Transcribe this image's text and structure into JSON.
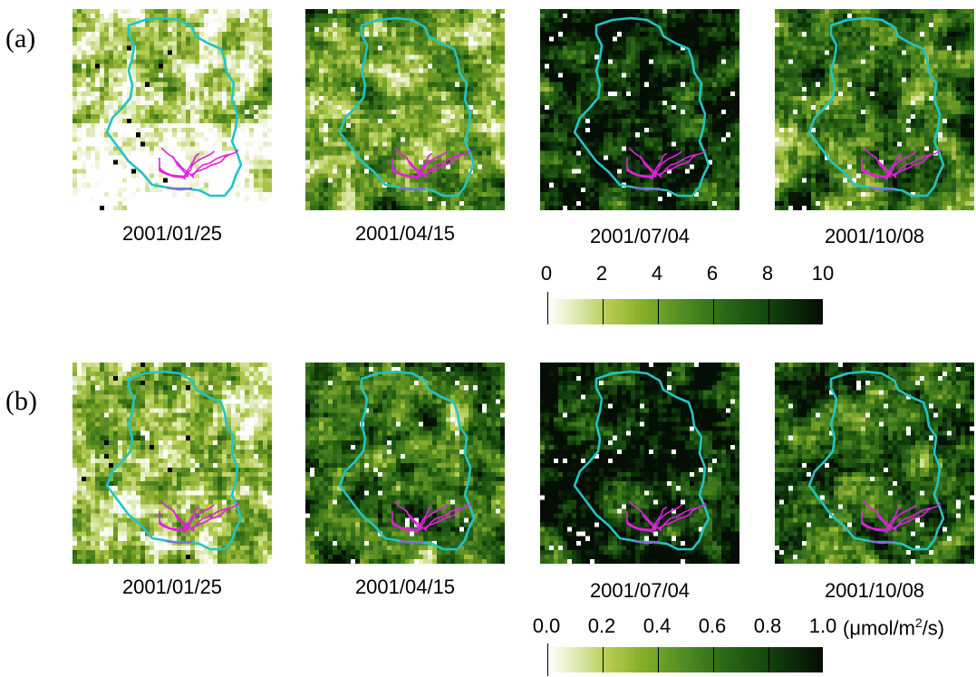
{
  "figure": {
    "panel_a_label": "(a)",
    "panel_b_label": "(b)",
    "row_a": {
      "dates": [
        "2001/01/25",
        "2001/04/15",
        "2001/07/04",
        "2001/10/08"
      ],
      "colorbar_ticks": [
        "0",
        "2",
        "4",
        "6",
        "8",
        "10"
      ]
    },
    "row_b": {
      "dates": [
        "2001/01/25",
        "2001/04/15",
        "2001/07/04",
        "2001/10/08"
      ],
      "colorbar_ticks": [
        "0.0",
        "0.2",
        "0.4",
        "0.6",
        "0.8",
        "1.0"
      ],
      "unit_prefix": "(μmol/m",
      "unit_exp": "2",
      "unit_suffix": "/s)"
    },
    "map_darkness_levels": {
      "a": [
        0.22,
        0.42,
        0.88,
        0.6
      ],
      "b": [
        0.35,
        0.62,
        0.9,
        0.72
      ]
    },
    "colors": {
      "boundary": "#22c4c4",
      "river_network": "#e020e0",
      "river_outlet": "#7a6fd0",
      "colormap_low": "#ffffff",
      "colormap_mid": "#4e8b22",
      "colormap_high": "#050c04"
    }
  }
}
